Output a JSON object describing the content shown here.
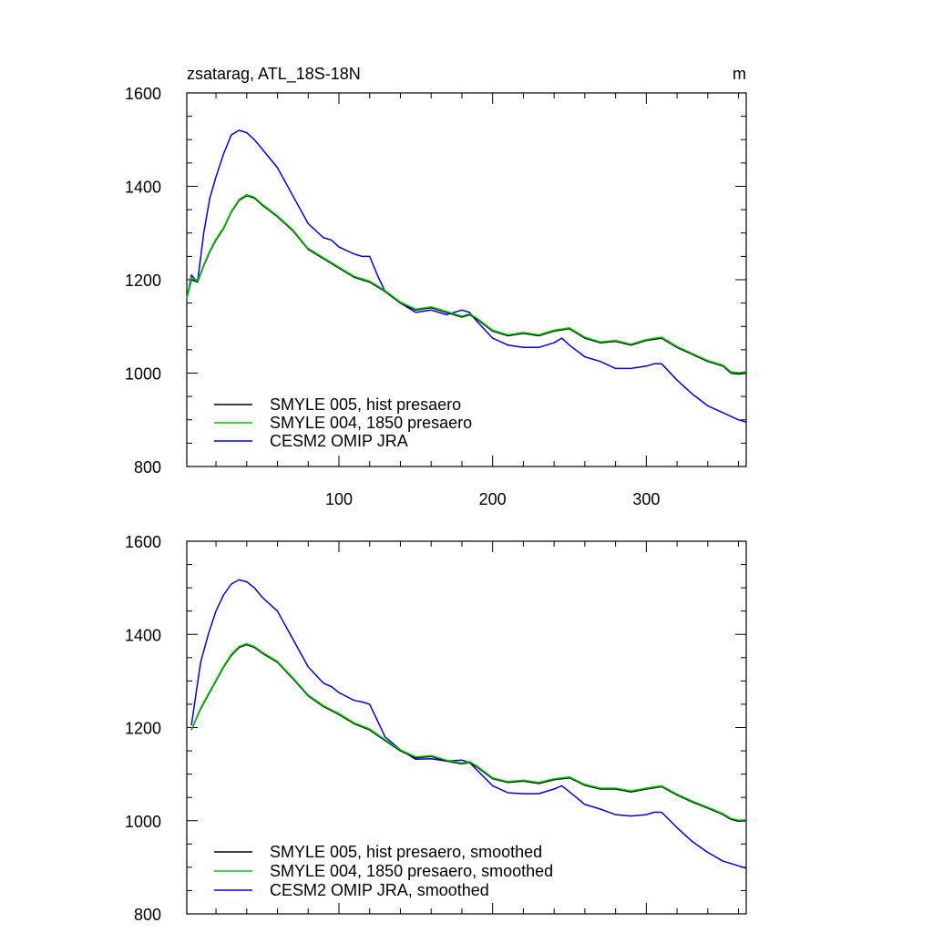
{
  "chart_data": [
    {
      "type": "line",
      "title": "zsatarag, ATL_18S-18N",
      "units": "m",
      "xlabel": "",
      "ylabel": "",
      "xlim": [
        1,
        365
      ],
      "ylim": [
        800,
        1600
      ],
      "xticks": [
        100,
        200,
        300
      ],
      "yticks": [
        800,
        1000,
        1200,
        1400,
        1600
      ],
      "xtick_labels": [
        "100",
        "200",
        "300"
      ],
      "ytick_labels": [
        "800",
        "1000",
        "1200",
        "1400",
        "1600"
      ],
      "legend_position": "bottom-left",
      "series": [
        {
          "name": "SMYLE 005, hist presaero",
          "color": "#000000",
          "x": [
            1,
            4,
            8,
            12,
            16,
            20,
            25,
            30,
            35,
            40,
            45,
            50,
            60,
            70,
            80,
            90,
            100,
            110,
            120,
            130,
            140,
            150,
            160,
            170,
            180,
            185,
            190,
            200,
            210,
            220,
            230,
            240,
            250,
            260,
            270,
            280,
            290,
            300,
            310,
            320,
            330,
            340,
            350,
            355,
            360,
            365
          ],
          "y": [
            1160,
            1200,
            1195,
            1230,
            1260,
            1285,
            1310,
            1345,
            1370,
            1380,
            1375,
            1360,
            1335,
            1305,
            1265,
            1245,
            1225,
            1205,
            1195,
            1175,
            1150,
            1135,
            1140,
            1130,
            1120,
            1125,
            1115,
            1090,
            1080,
            1085,
            1080,
            1090,
            1095,
            1075,
            1065,
            1068,
            1060,
            1070,
            1075,
            1055,
            1040,
            1025,
            1015,
            1000,
            998,
            1000
          ]
        },
        {
          "name": "SMYLE 004, 1850 presaero",
          "color": "#00cc00",
          "x": [
            1,
            4,
            8,
            12,
            16,
            20,
            25,
            30,
            35,
            40,
            45,
            50,
            60,
            70,
            80,
            90,
            100,
            110,
            120,
            130,
            140,
            150,
            160,
            170,
            180,
            185,
            190,
            200,
            210,
            220,
            230,
            240,
            250,
            260,
            270,
            280,
            290,
            300,
            310,
            320,
            330,
            340,
            350,
            355,
            360,
            365
          ],
          "y": [
            1160,
            1205,
            1197,
            1232,
            1262,
            1287,
            1312,
            1347,
            1372,
            1382,
            1377,
            1362,
            1337,
            1307,
            1267,
            1247,
            1227,
            1207,
            1197,
            1177,
            1152,
            1137,
            1142,
            1132,
            1122,
            1127,
            1117,
            1092,
            1082,
            1087,
            1082,
            1092,
            1097,
            1077,
            1067,
            1070,
            1062,
            1072,
            1077,
            1057,
            1042,
            1027,
            1017,
            1003,
            1001,
            1003
          ]
        },
        {
          "name": "CESM2 OMIP JRA",
          "color": "#0000dd",
          "x": [
            1,
            4,
            8,
            12,
            16,
            20,
            25,
            30,
            35,
            40,
            45,
            50,
            60,
            70,
            80,
            90,
            95,
            100,
            110,
            115,
            120,
            125,
            130,
            140,
            150,
            160,
            170,
            180,
            185,
            190,
            200,
            210,
            220,
            230,
            240,
            245,
            250,
            260,
            270,
            280,
            290,
            300,
            305,
            310,
            320,
            330,
            340,
            350,
            360,
            365
          ],
          "y": [
            1160,
            1210,
            1195,
            1300,
            1375,
            1420,
            1470,
            1510,
            1520,
            1515,
            1500,
            1480,
            1440,
            1380,
            1320,
            1290,
            1285,
            1270,
            1255,
            1250,
            1250,
            1210,
            1175,
            1150,
            1130,
            1135,
            1125,
            1135,
            1130,
            1110,
            1075,
            1060,
            1055,
            1055,
            1065,
            1075,
            1060,
            1035,
            1025,
            1010,
            1010,
            1015,
            1020,
            1020,
            985,
            955,
            930,
            915,
            900,
            895
          ]
        }
      ]
    },
    {
      "type": "line",
      "title": "",
      "xlabel": "",
      "ylabel": "",
      "xlim": [
        1,
        365
      ],
      "ylim": [
        800,
        1600
      ],
      "xticks": [
        100,
        200,
        300
      ],
      "yticks": [
        800,
        1000,
        1200,
        1400,
        1600
      ],
      "xtick_labels": [],
      "ytick_labels": [
        "800",
        "1000",
        "1200",
        "1400",
        "1600"
      ],
      "legend_position": "bottom-left",
      "series": [
        {
          "name": "SMYLE 005, hist presaero, smoothed",
          "color": "#000000",
          "x": [
            4,
            10,
            15,
            20,
            25,
            30,
            35,
            40,
            45,
            50,
            60,
            70,
            80,
            90,
            100,
            110,
            120,
            130,
            140,
            150,
            160,
            170,
            180,
            185,
            190,
            200,
            210,
            220,
            230,
            240,
            250,
            260,
            270,
            280,
            290,
            300,
            310,
            320,
            330,
            340,
            350,
            355,
            360,
            365
          ],
          "y": [
            1195,
            1240,
            1270,
            1300,
            1330,
            1355,
            1372,
            1378,
            1372,
            1360,
            1340,
            1305,
            1268,
            1245,
            1228,
            1208,
            1195,
            1172,
            1150,
            1135,
            1138,
            1128,
            1122,
            1125,
            1115,
            1090,
            1082,
            1085,
            1080,
            1088,
            1092,
            1076,
            1068,
            1068,
            1062,
            1068,
            1073,
            1055,
            1040,
            1027,
            1013,
            1003,
            999,
            1000
          ]
        },
        {
          "name": "SMYLE 004, 1850 presaero, smoothed",
          "color": "#00cc00",
          "x": [
            4,
            10,
            15,
            20,
            25,
            30,
            35,
            40,
            45,
            50,
            60,
            70,
            80,
            90,
            100,
            110,
            120,
            130,
            140,
            150,
            160,
            170,
            180,
            185,
            190,
            200,
            210,
            220,
            230,
            240,
            250,
            260,
            270,
            280,
            290,
            300,
            310,
            320,
            330,
            340,
            350,
            355,
            360,
            365
          ],
          "y": [
            1196,
            1242,
            1272,
            1302,
            1332,
            1357,
            1374,
            1380,
            1374,
            1362,
            1342,
            1307,
            1270,
            1247,
            1230,
            1210,
            1197,
            1174,
            1152,
            1137,
            1140,
            1130,
            1124,
            1127,
            1117,
            1092,
            1084,
            1087,
            1082,
            1090,
            1094,
            1078,
            1070,
            1070,
            1064,
            1070,
            1075,
            1057,
            1042,
            1029,
            1015,
            1005,
            1001,
            1002
          ]
        },
        {
          "name": "CESM2 OMIP JRA, smoothed",
          "color": "#0000dd",
          "x": [
            4,
            10,
            15,
            20,
            25,
            30,
            35,
            40,
            45,
            50,
            60,
            70,
            80,
            90,
            95,
            100,
            110,
            115,
            120,
            125,
            130,
            140,
            150,
            160,
            170,
            180,
            185,
            190,
            200,
            210,
            220,
            230,
            240,
            245,
            250,
            260,
            270,
            280,
            290,
            300,
            305,
            310,
            320,
            330,
            340,
            350,
            360,
            365
          ],
          "y": [
            1205,
            1340,
            1400,
            1450,
            1485,
            1508,
            1517,
            1513,
            1500,
            1480,
            1450,
            1390,
            1330,
            1295,
            1288,
            1275,
            1258,
            1255,
            1250,
            1215,
            1180,
            1152,
            1132,
            1133,
            1128,
            1130,
            1125,
            1108,
            1075,
            1060,
            1058,
            1058,
            1068,
            1075,
            1062,
            1035,
            1025,
            1013,
            1010,
            1013,
            1018,
            1018,
            985,
            955,
            932,
            913,
            903,
            898
          ]
        }
      ]
    }
  ]
}
